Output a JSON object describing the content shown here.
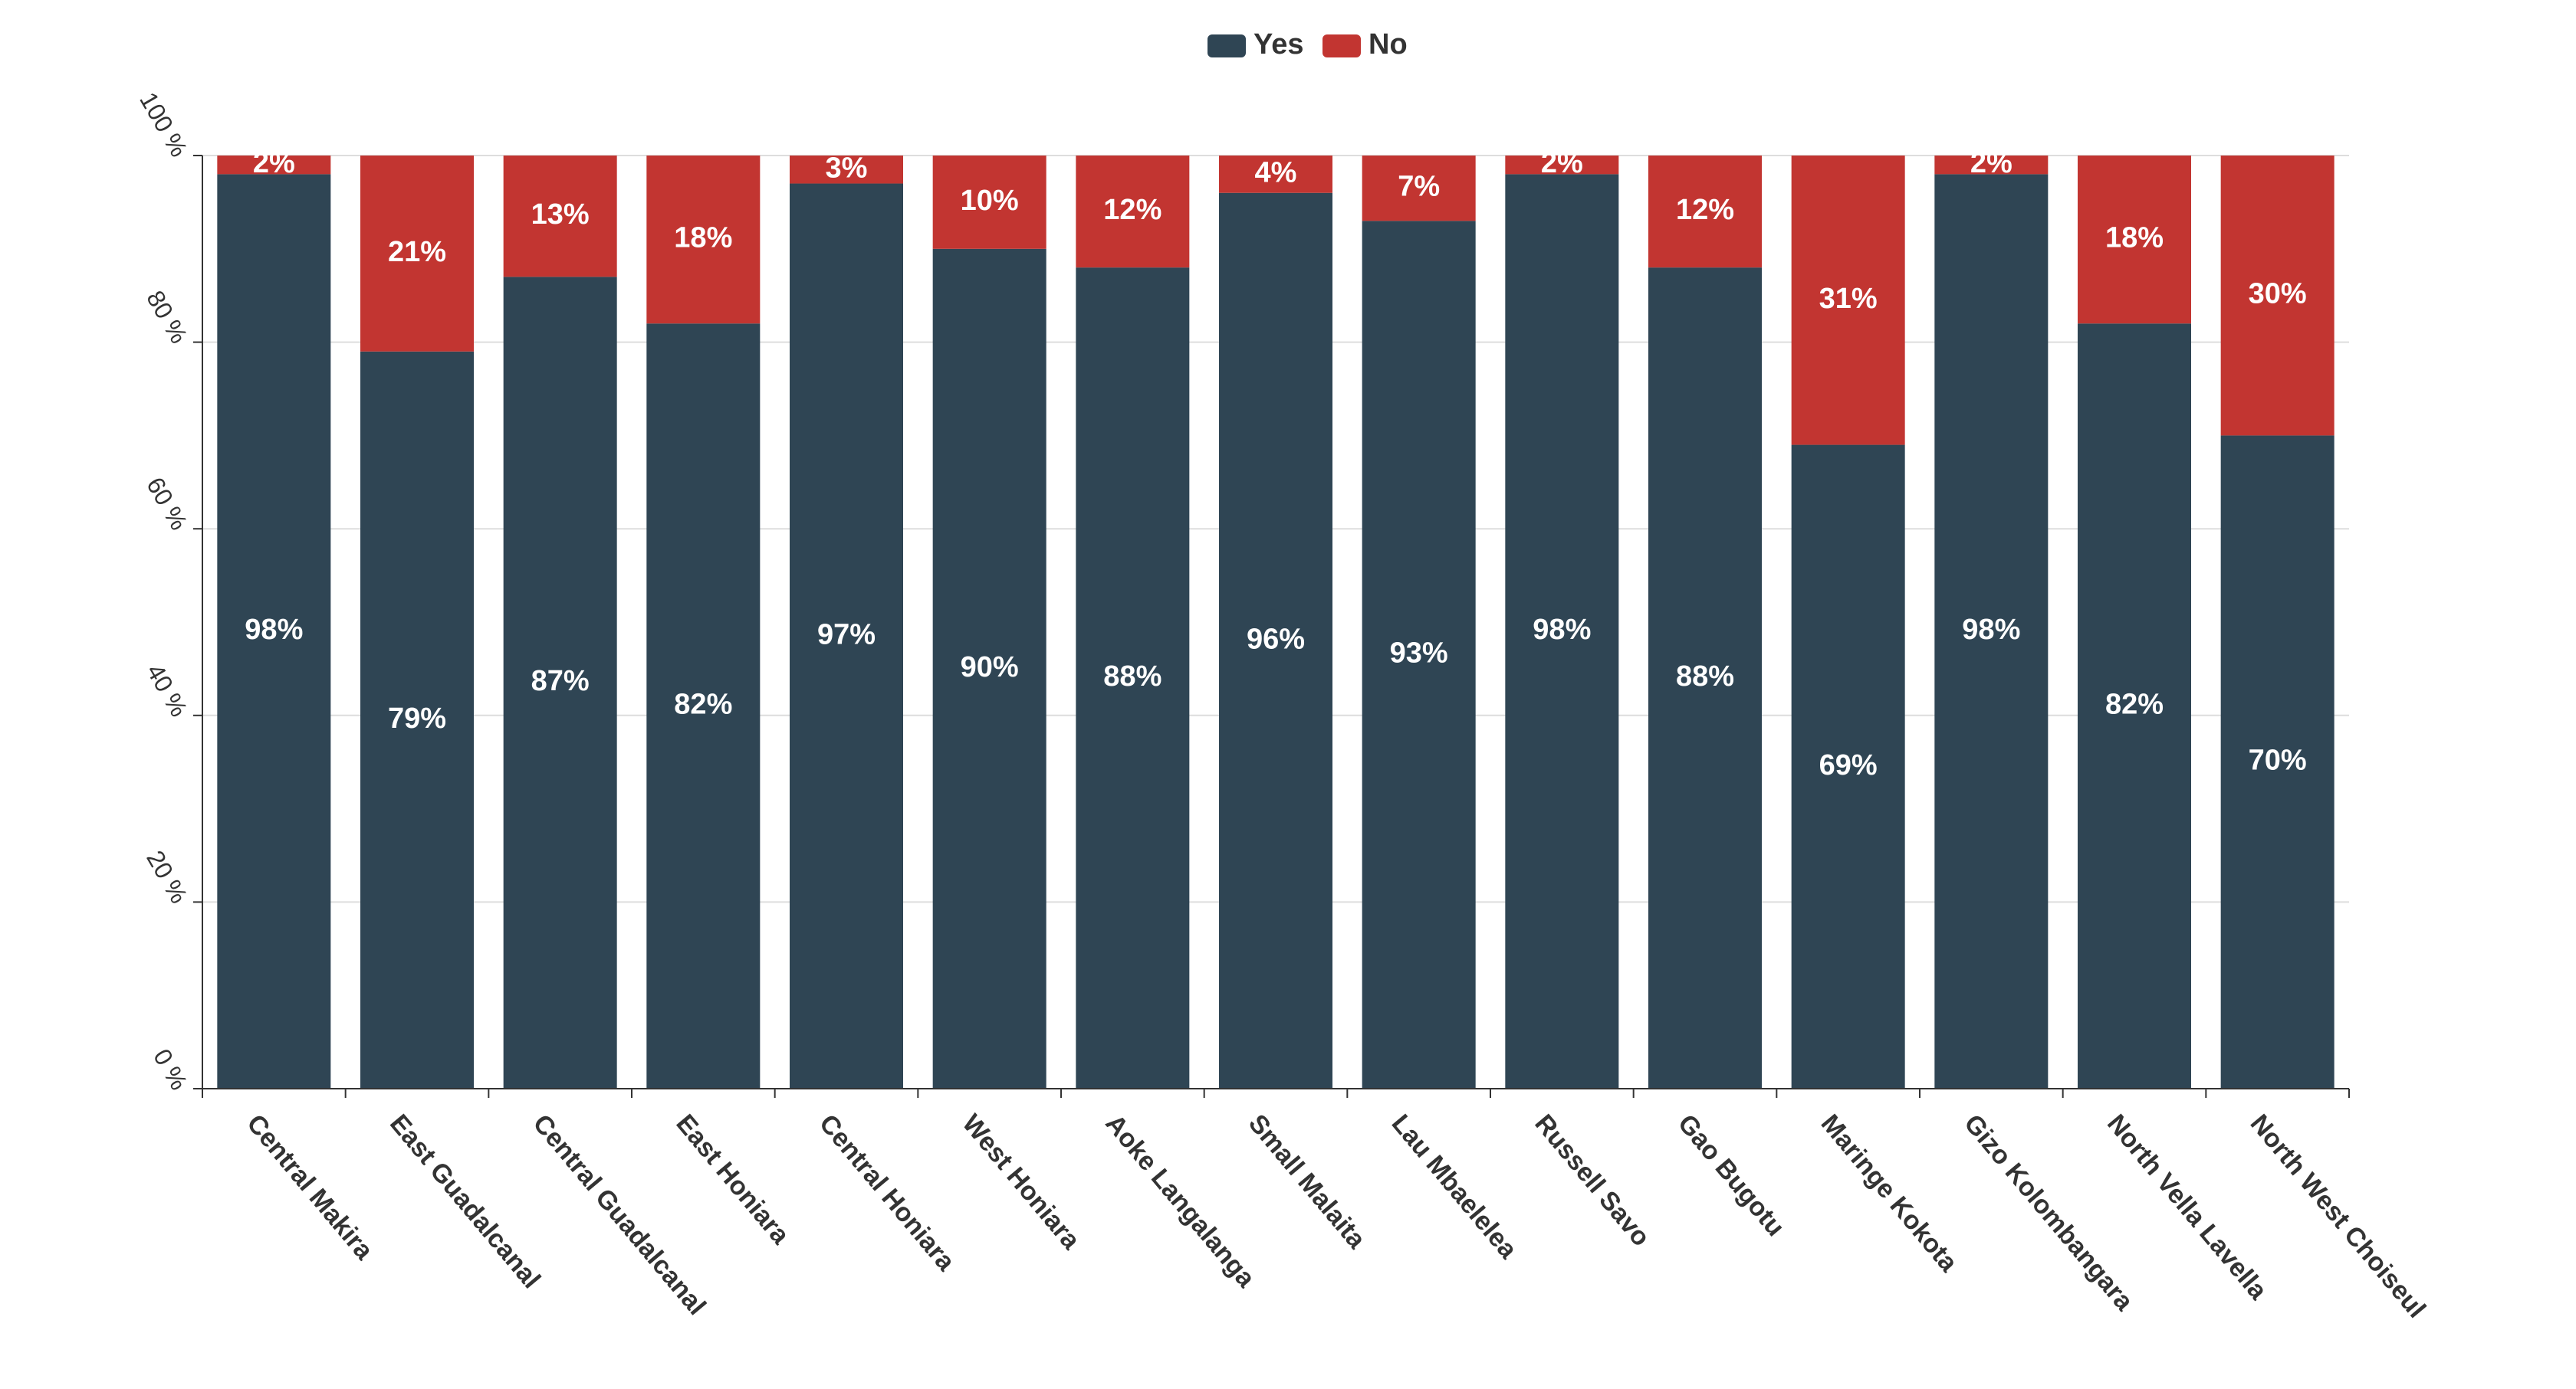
{
  "chart_data": {
    "type": "bar",
    "stacked": true,
    "percent": true,
    "categories": [
      "Central Makira",
      "East Guadalcanal",
      "Central Guadalcanal",
      "East Honiara",
      "Central Honiara",
      "West Honiara",
      "Aoke Langalanga",
      "Small Malaita",
      "Lau Mbaelelea",
      "Russell Savo",
      "Gao Bugotu",
      "Maringe Kokota",
      "Gizo Kolombangara",
      "North Vella Lavella",
      "North West Choiseul"
    ],
    "series": [
      {
        "name": "Yes",
        "color": "#2f4554",
        "values": [
          98,
          79,
          87,
          82,
          97,
          90,
          88,
          96,
          93,
          98,
          88,
          69,
          98,
          82,
          70
        ],
        "labels": [
          "98%",
          "79%",
          "87%",
          "82%",
          "97%",
          "90%",
          "88%",
          "96%",
          "93%",
          "98%",
          "88%",
          "69%",
          "98%",
          "82%",
          "70%"
        ]
      },
      {
        "name": "No",
        "color": "#c23531",
        "values": [
          2,
          21,
          13,
          18,
          3,
          10,
          12,
          4,
          7,
          2,
          12,
          31,
          2,
          18,
          30
        ],
        "labels": [
          "2%",
          "21%",
          "13%",
          "18%",
          "3%",
          "10%",
          "12%",
          "4%",
          "7%",
          "2%",
          "12%",
          "31%",
          "2%",
          "18%",
          "30%"
        ]
      }
    ],
    "y_ticks": [
      "0 %",
      "20 %",
      "40 %",
      "60 %",
      "80 %",
      "100 %"
    ],
    "y_tick_values": [
      0,
      20,
      40,
      60,
      80,
      100
    ],
    "ylim": [
      0,
      100
    ],
    "grid": true,
    "legend_position": "top-center"
  }
}
